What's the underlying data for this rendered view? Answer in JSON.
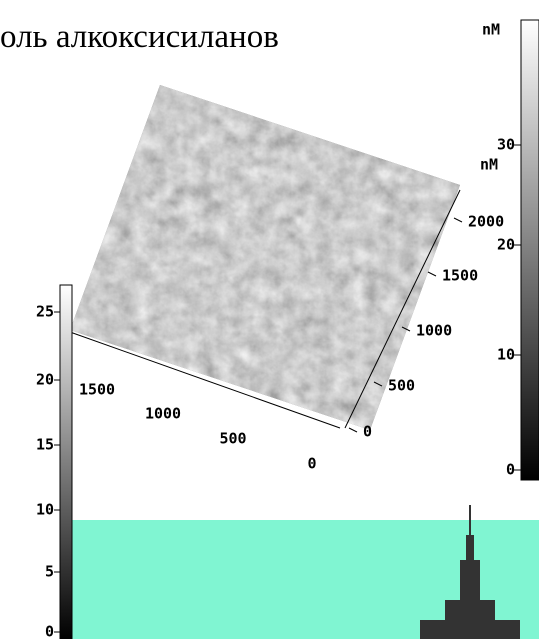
{
  "title": "оль алкоксисиланов",
  "right_colorbar": {
    "unit": "nM",
    "ticks": [
      30,
      20,
      10,
      0
    ]
  },
  "z_axis": {
    "unit": "nM",
    "ticks": [
      2000,
      1500,
      1000,
      500,
      0
    ]
  },
  "x_axis": {
    "ticks": [
      1500,
      1000,
      500,
      0
    ]
  },
  "left_colorbar": {
    "ticks": [
      25,
      20,
      15,
      10,
      5,
      0
    ]
  }
}
